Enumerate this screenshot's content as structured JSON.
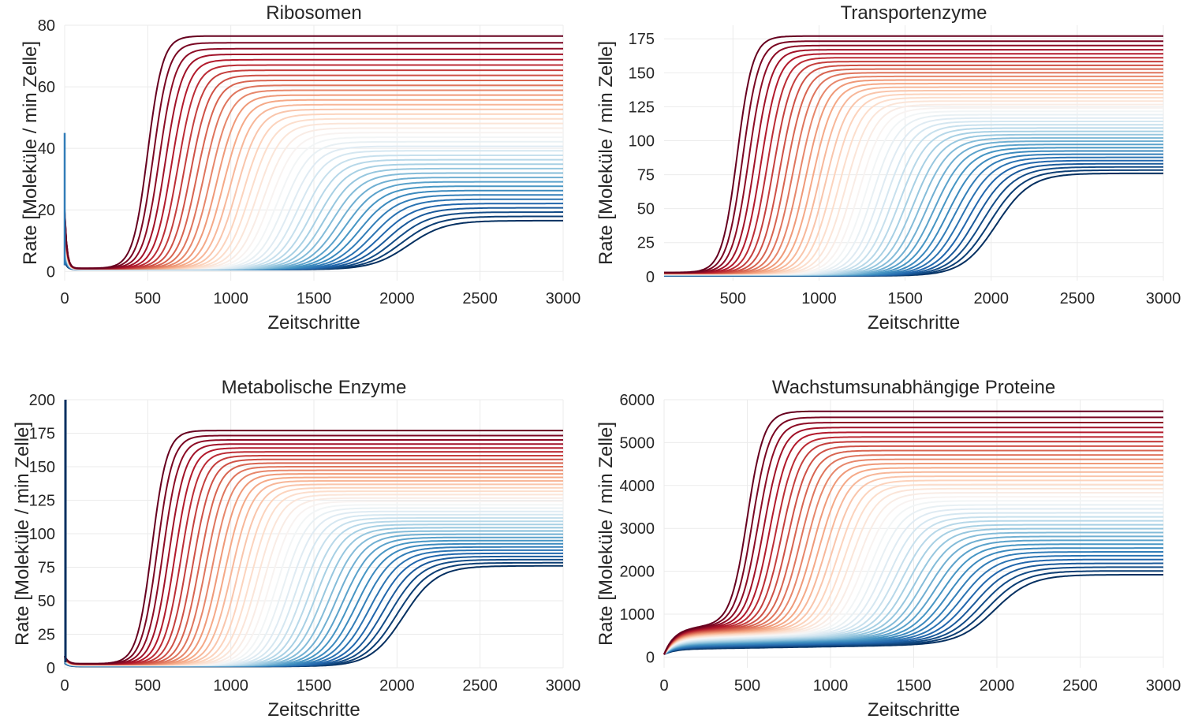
{
  "chart_data": [
    {
      "type": "line",
      "title": "Ribosomen",
      "xlabel": "Zeitschritte",
      "ylabel": "Rate [Moleküle / min Zelle]",
      "xlim": [
        0,
        3000
      ],
      "ylim": [
        -3,
        80
      ],
      "xticks": [
        0,
        500,
        1000,
        1500,
        2000,
        2500,
        3000
      ],
      "yticks": [
        0,
        20,
        40,
        60,
        80
      ],
      "grid": true,
      "colormap": "RdBu",
      "color_order": "high plateau = dark red, low plateau = dark blue",
      "initial_value": 45,
      "dip_value": 1,
      "series_count": 40,
      "plateau_range": [
        16.5,
        76.5
      ],
      "midpoint_range": [
        500,
        2070
      ],
      "width_range": [
        45,
        110
      ]
    },
    {
      "type": "line",
      "title": "Transportenzyme",
      "xlabel": "Zeitschritte",
      "ylabel": "Rate [Moleküle / min Zelle]",
      "xlim": [
        100,
        3000
      ],
      "ylim": [
        -3,
        185
      ],
      "xticks": [
        500,
        1000,
        1500,
        2000,
        2500,
        3000
      ],
      "yticks": [
        0,
        25,
        50,
        75,
        100,
        125,
        150,
        175
      ],
      "grid": true,
      "colormap": "RdBu",
      "color_order": "high plateau = dark red, low plateau = dark blue",
      "initial_value": 2,
      "series_count": 40,
      "plateau_range": [
        76,
        177
      ],
      "midpoint_range": [
        525,
        2030
      ],
      "width_range": [
        45,
        100
      ]
    },
    {
      "type": "line",
      "title": "Metabolische Enzyme",
      "xlabel": "Zeitschritte",
      "ylabel": "Rate [Moleküle / min Zelle]",
      "xlim": [
        0,
        3000
      ],
      "ylim": [
        0,
        200
      ],
      "xticks": [
        0,
        500,
        1000,
        1500,
        2000,
        2500,
        3000
      ],
      "yticks": [
        0,
        25,
        50,
        75,
        100,
        125,
        150,
        175,
        200
      ],
      "grid": true,
      "colormap": "RdBu",
      "color_order": "high plateau = dark red, low plateau = dark blue",
      "initial_value": 200,
      "dip_value": 3,
      "series_count": 40,
      "plateau_range": [
        76,
        177
      ],
      "midpoint_range": [
        525,
        2040
      ],
      "width_range": [
        45,
        100
      ]
    },
    {
      "type": "line",
      "title": "Wachstumsunabhängige Proteine",
      "xlabel": "Zeitschritte",
      "ylabel": "Rate [Moleküle / min Zelle]",
      "xlim": [
        0,
        3000
      ],
      "ylim": [
        -250,
        6000
      ],
      "xticks": [
        0,
        500,
        1000,
        1500,
        2000,
        2500,
        3000
      ],
      "yticks": [
        0,
        1000,
        2000,
        3000,
        4000,
        5000,
        6000
      ],
      "grid": true,
      "colormap": "RdBu",
      "color_order": "high plateau = dark red, low plateau = dark blue",
      "initial_value": 150,
      "early_plateau_range": [
        120,
        600
      ],
      "series_count": 40,
      "plateau_range": [
        1920,
        5730
      ],
      "midpoint_range": [
        500,
        1990
      ],
      "width_range": [
        50,
        110
      ]
    }
  ]
}
